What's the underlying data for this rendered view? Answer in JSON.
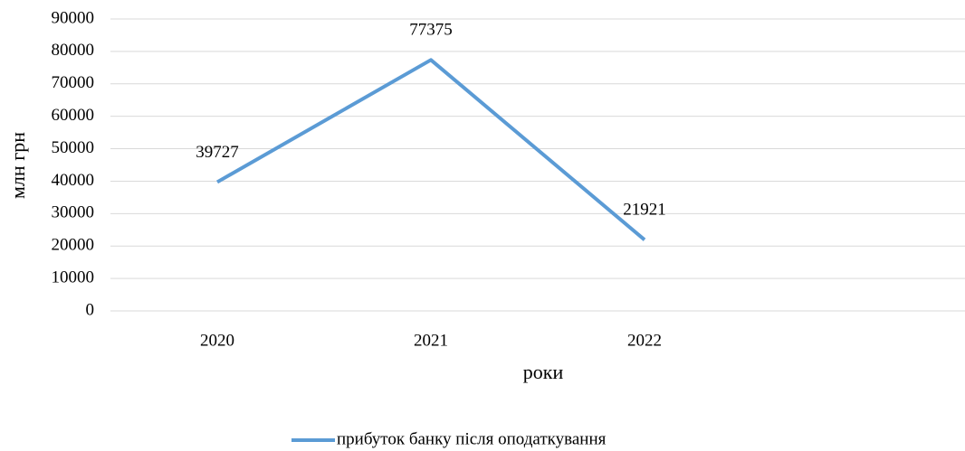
{
  "chart_data": {
    "type": "line",
    "categories": [
      "2020",
      "2021",
      "2022",
      null
    ],
    "series": [
      {
        "name": "прибуток банку після оподаткування",
        "color": "#5b9bd5",
        "values": [
          39727,
          77375,
          21921,
          null
        ]
      }
    ],
    "ylim": [
      0,
      90000
    ],
    "yticks": [
      0,
      10000,
      20000,
      30000,
      40000,
      50000,
      60000,
      70000,
      80000,
      90000
    ],
    "grid": true,
    "y_label": "млн грн",
    "x_label": "роки",
    "legend": "bottom"
  }
}
